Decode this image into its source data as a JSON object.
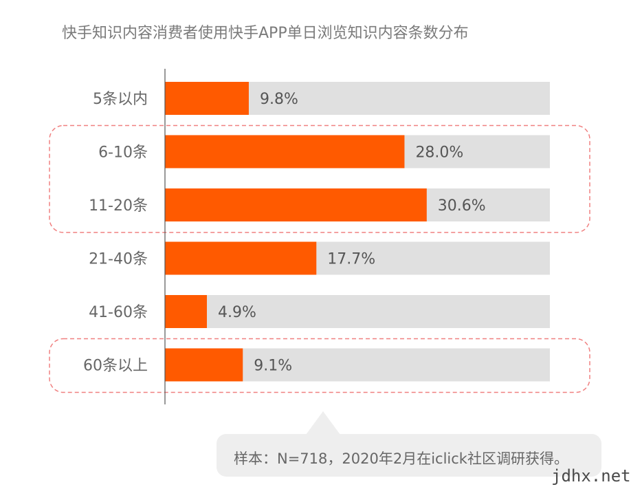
{
  "title": "快手知识内容消费者使用快手APP单日浏览知识内容条数分布",
  "note": "样本：N=718，2020年2月在iclick社区调研获得。",
  "watermark": "jdhx.net",
  "colors": {
    "bar": "#ff5a00",
    "track": "#e0e0e0",
    "highlight_border": "#f08080",
    "label": "#666666",
    "value": "#555555",
    "axis": "#555555",
    "note_bg": "#eeeeee"
  },
  "chart_data": {
    "type": "bar",
    "orientation": "horizontal",
    "title": "快手知识内容消费者使用快手APP单日浏览知识内容条数分布",
    "categories": [
      "5条以内",
      "6-10条",
      "11-20条",
      "21-40条",
      "41-60条",
      "60条以上"
    ],
    "values": [
      9.8,
      28.0,
      30.6,
      17.7,
      4.9,
      9.1
    ],
    "value_labels": [
      "9.8%",
      "28.0%",
      "30.6%",
      "17.7%",
      "4.9%",
      "9.1%"
    ],
    "unit": "%",
    "xlim": [
      0,
      45
    ],
    "grid": false,
    "highlighted_groups": [
      [
        "6-10条",
        "11-20条"
      ],
      [
        "60条以上"
      ]
    ]
  }
}
